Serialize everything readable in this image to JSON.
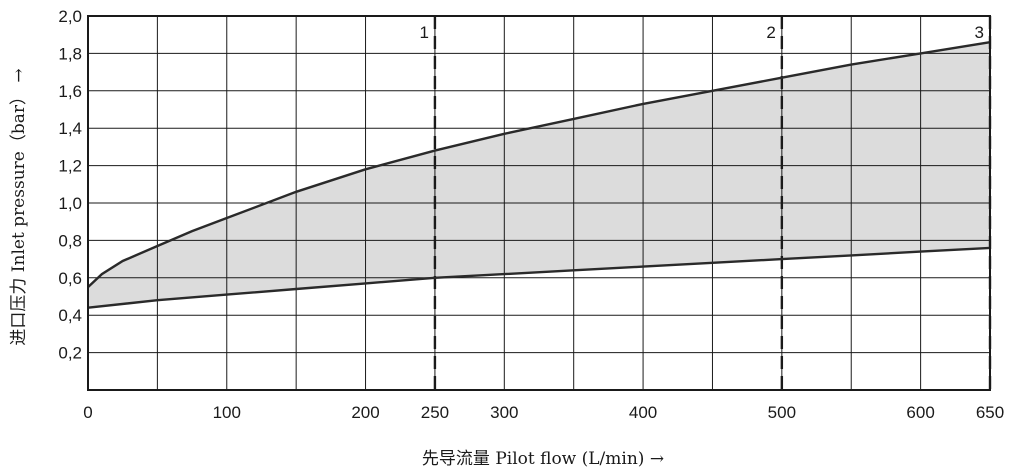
{
  "chart_data": {
    "type": "area",
    "xlabel": "先导流量 Pilot flow (L/min) →",
    "ylabel": "进口压力 Inlet pressure（bar） →",
    "xlim": [
      0,
      650
    ],
    "ylim": [
      0,
      2.0
    ],
    "x_grid": [
      0,
      50,
      100,
      150,
      200,
      250,
      300,
      350,
      400,
      450,
      500,
      550,
      600,
      650
    ],
    "y_grid": [
      0,
      0.2,
      0.4,
      0.6,
      0.8,
      1.0,
      1.2,
      1.4,
      1.6,
      1.8,
      2.0
    ],
    "x_tick_values": [
      0,
      100,
      200,
      250,
      300,
      400,
      500,
      600,
      650
    ],
    "x_tick_labels": [
      "0",
      "100",
      "200",
      "250",
      "300",
      "400",
      "500",
      "600",
      "650"
    ],
    "y_tick_values": [
      0.2,
      0.4,
      0.6,
      0.8,
      1.0,
      1.2,
      1.4,
      1.6,
      1.8,
      2.0
    ],
    "y_tick_labels": [
      "0,2",
      "0,4",
      "0,6",
      "0,8",
      "1,0",
      "1,2",
      "1,4",
      "1,6",
      "1,8",
      "2,0"
    ],
    "grid": true,
    "series": [
      {
        "x": [
          0,
          10,
          25,
          50,
          75,
          100,
          150,
          200,
          250,
          300,
          350,
          400,
          450,
          500,
          550,
          600,
          650
        ],
        "values": [
          0.55,
          0.62,
          0.69,
          0.77,
          0.85,
          0.92,
          1.06,
          1.18,
          1.28,
          1.37,
          1.45,
          1.53,
          1.6,
          1.67,
          1.74,
          1.8,
          1.86
        ],
        "color": "#2a2a2a"
      },
      {
        "x": [
          0,
          50,
          100,
          150,
          200,
          250,
          300,
          350,
          400,
          450,
          500,
          550,
          600,
          650
        ],
        "values": [
          0.44,
          0.48,
          0.51,
          0.54,
          0.57,
          0.6,
          0.62,
          0.64,
          0.66,
          0.68,
          0.7,
          0.72,
          0.74,
          0.76
        ],
        "color": "#2a2a2a"
      }
    ],
    "fill_between": {
      "color": "#dcdcdc"
    },
    "annotations": [
      {
        "label": "1",
        "x": 250
      },
      {
        "label": "2",
        "x": 500
      },
      {
        "label": "3",
        "x": 650
      }
    ]
  }
}
